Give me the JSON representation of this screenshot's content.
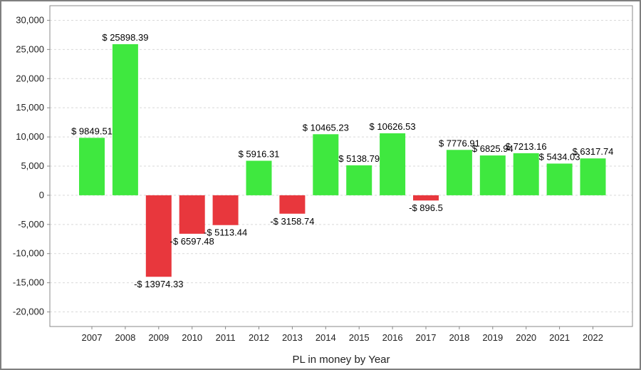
{
  "chart_data": {
    "type": "bar",
    "title": "",
    "xlabel": "PL in money by Year",
    "ylabel": "",
    "categories": [
      "2007",
      "2008",
      "2009",
      "2010",
      "2011",
      "2012",
      "2013",
      "2014",
      "2015",
      "2016",
      "2017",
      "2018",
      "2019",
      "2020",
      "2021",
      "2022"
    ],
    "values": [
      9849.51,
      25898.39,
      -13974.33,
      -6597.48,
      -5113.44,
      5916.31,
      -3158.74,
      10465.23,
      5138.79,
      10626.53,
      -896.5,
      7776.91,
      6825.94,
      7213.16,
      5434.03,
      6317.74
    ],
    "data_labels": [
      "$ 9849.51",
      "$ 25898.39",
      "-$ 13974.33",
      "-$ 6597.48",
      "-$ 5113.44",
      "$ 5916.31",
      "-$ 3158.74",
      "$ 10465.23",
      "$ 5138.79",
      "$ 10626.53",
      "-$ 896.5",
      "$ 7776.91",
      "$ 6825.94",
      "$ 7213.16",
      "$ 5434.03",
      "$ 6317.74"
    ],
    "ylim": [
      -22500,
      32500
    ],
    "yticks": [
      -20000,
      -15000,
      -10000,
      -5000,
      0,
      5000,
      10000,
      15000,
      20000,
      25000,
      30000
    ],
    "ytick_labels": [
      "-20,000",
      "-15,000",
      "-10,000",
      "-5,000",
      "0",
      "5,000",
      "10,000",
      "15,000",
      "20,000",
      "25,000",
      "30,000"
    ],
    "grid": true,
    "legend": "none",
    "colors": {
      "positive": "#3fe83f",
      "negative": "#e8373d",
      "grid": "#d9d9d9",
      "axis": "#888888",
      "frame": "#7f7f7f"
    }
  }
}
